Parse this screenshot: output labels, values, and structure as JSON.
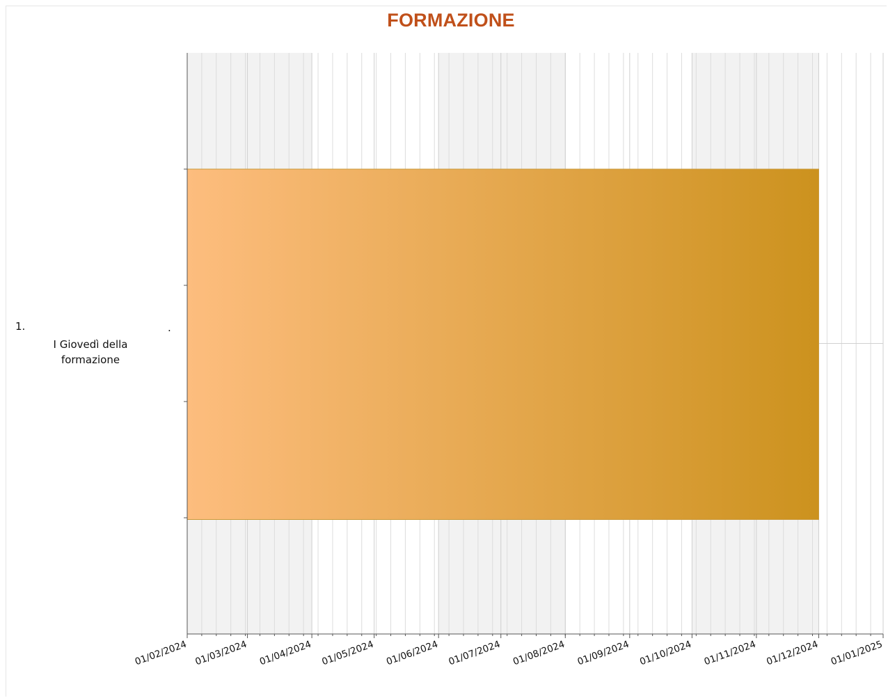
{
  "chart_data": {
    "type": "gantt",
    "title": "FORMAZIONE",
    "xlabel": "",
    "ylabel": "",
    "x_tick_labels": [
      "01/02/2024",
      "01/03/2024",
      "01/04/2024",
      "01/05/2024",
      "01/06/2024",
      "01/07/2024",
      "01/08/2024",
      "01/09/2024",
      "01/10/2024",
      "01/11/2024",
      "01/12/2024",
      "01/01/2025"
    ],
    "xlim": [
      "2024-02-01",
      "2025-01-01"
    ],
    "grid": true,
    "tasks": [
      {
        "number": "1.",
        "label_lines": [
          "I Giovedì della",
          "formazione"
        ],
        "marker": ".",
        "start": "2024-02-01",
        "end": "2024-12-01",
        "color_start": "#fdbd7e",
        "color_end": "#cc921e"
      }
    ]
  }
}
